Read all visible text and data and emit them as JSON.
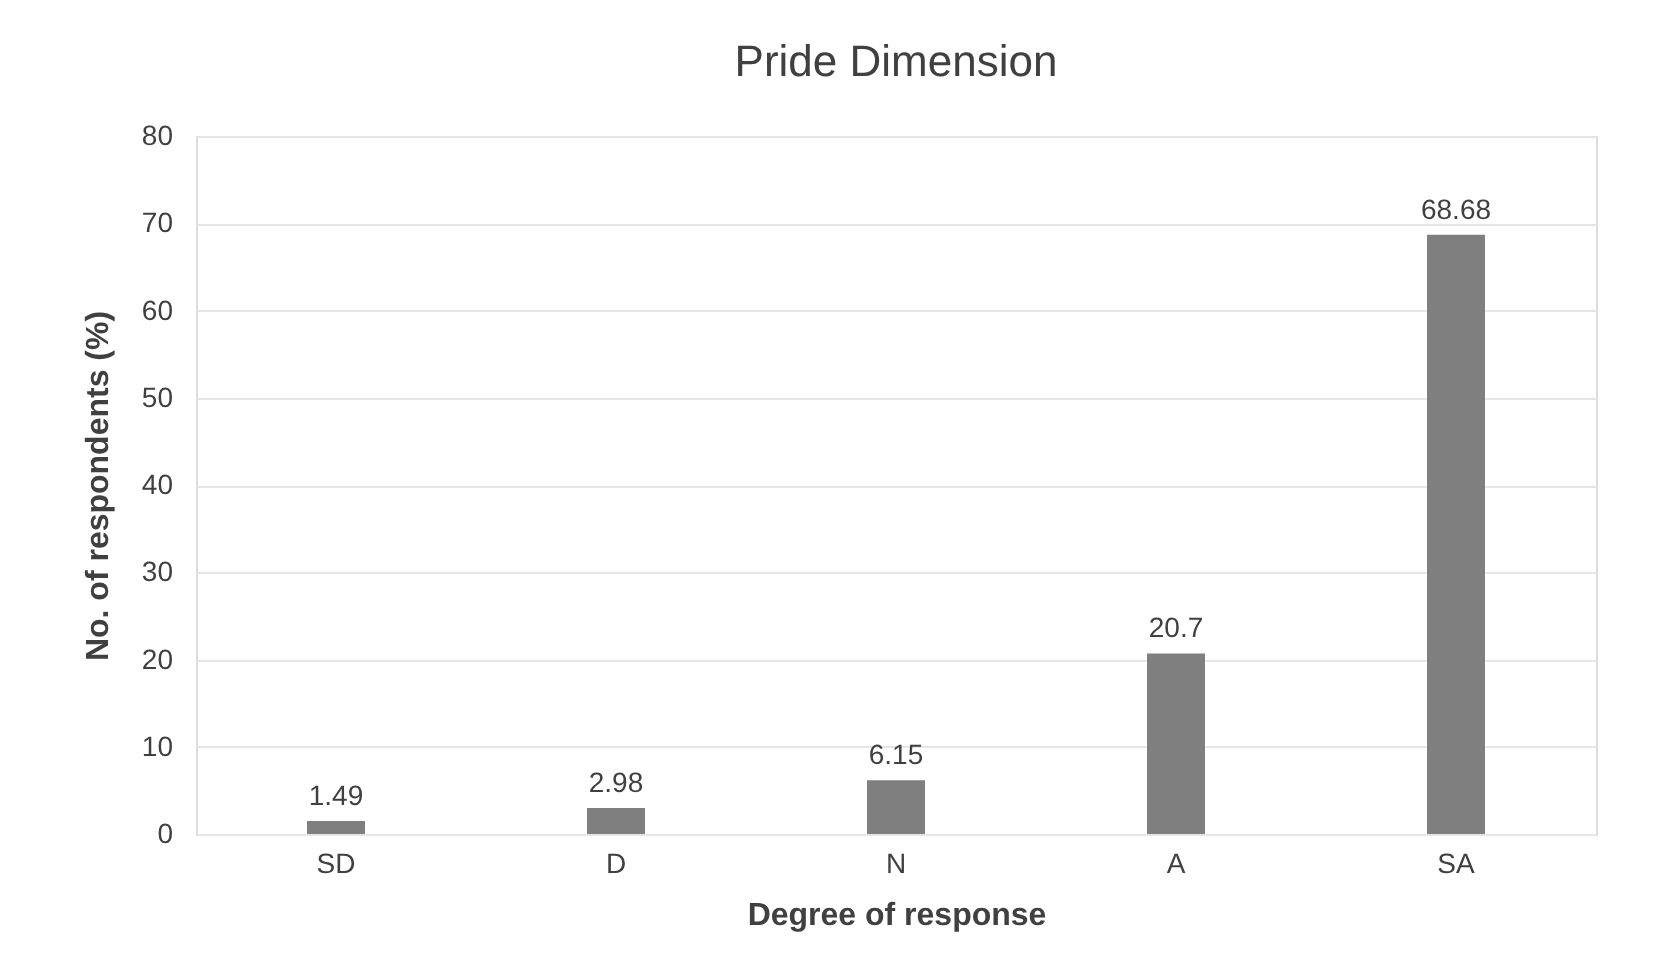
{
  "chart_data": {
    "type": "bar",
    "title": "Pride Dimension",
    "xlabel": "Degree of response",
    "ylabel": "No. of respondents (%)",
    "categories": [
      "SD",
      "D",
      "N",
      "A",
      "SA"
    ],
    "values": [
      1.49,
      2.98,
      6.15,
      20.7,
      68.68
    ],
    "color": "#7f7f7f",
    "ylim": [
      0,
      80
    ],
    "yticks": [
      0,
      10,
      20,
      30,
      40,
      50,
      60,
      70,
      80
    ],
    "grid": "y",
    "data_labels": true
  }
}
